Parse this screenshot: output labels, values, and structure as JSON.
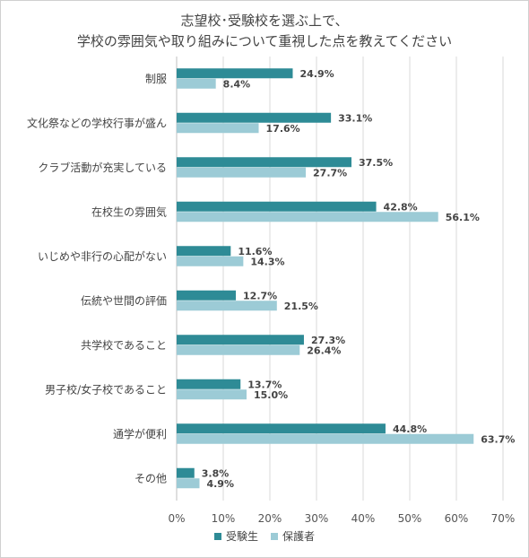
{
  "chart_data": {
    "type": "bar",
    "orientation": "horizontal",
    "title_lines": [
      "志望校･受験校を選ぶ上で、",
      "学校の雰囲気や取り組みについて重視した点を教えてください"
    ],
    "categories": [
      "制服",
      "文化祭などの学校行事が盛ん",
      "クラブ活動が充実している",
      "在校生の雰囲気",
      "いじめや非行の心配がない",
      "伝統や世間の評価",
      "共学校であること",
      "男子校/女子校であること",
      "通学が便利",
      "その他"
    ],
    "series": [
      {
        "name": "受験生",
        "color": "#2e8b96",
        "values": [
          24.9,
          33.1,
          37.5,
          42.8,
          11.6,
          12.7,
          27.3,
          13.7,
          44.8,
          3.8
        ]
      },
      {
        "name": "保護者",
        "color": "#9ccbd6",
        "values": [
          8.4,
          17.6,
          27.7,
          56.1,
          14.3,
          21.5,
          26.4,
          15.0,
          63.7,
          4.9
        ]
      }
    ],
    "value_suffix": "%",
    "xlim": [
      0,
      70
    ],
    "xticks": [
      "0%",
      "10%",
      "20%",
      "30%",
      "40%",
      "50%",
      "60%",
      "70%"
    ],
    "grid": "vertical",
    "legend_position": "bottom"
  }
}
